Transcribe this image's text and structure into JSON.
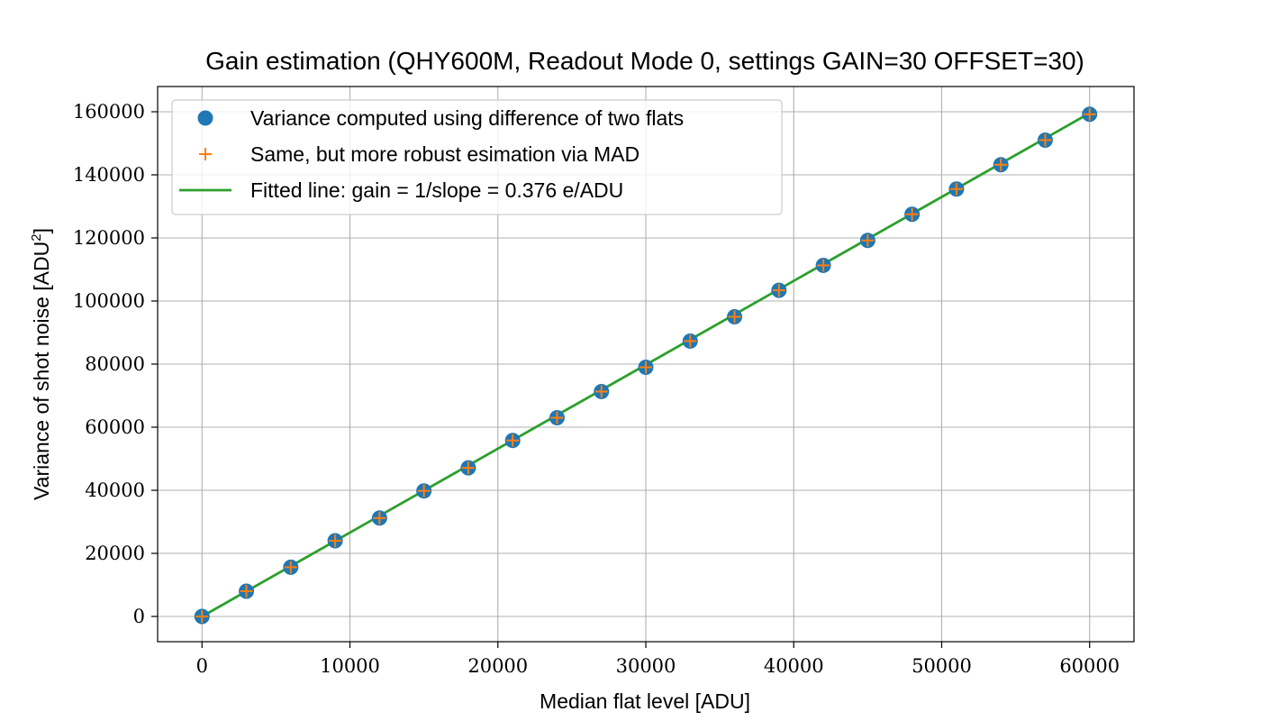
{
  "chart_data": {
    "type": "scatter",
    "title": "Gain estimation (QHY600M, Readout Mode 0, settings GAIN=30 OFFSET=30)",
    "xlabel": "Median flat level [ADU]",
    "ylabel_main": "Variance of shot noise [ADU",
    "ylabel_sup": "2",
    "ylabel_end": "]",
    "xlim": [
      -3000,
      63000
    ],
    "ylim": [
      -8000,
      168000
    ],
    "xticks": [
      0,
      10000,
      20000,
      30000,
      40000,
      50000,
      60000
    ],
    "yticks": [
      0,
      20000,
      40000,
      60000,
      80000,
      100000,
      120000,
      140000,
      160000
    ],
    "grid": true,
    "legend_position": "top-left",
    "colors": {
      "series1": "#1f77b4",
      "series2": "#ff7f0e",
      "fit": "#2ca02c",
      "grid": "#b0b0b0",
      "axes": "#000000"
    },
    "x": [
      0,
      3000,
      6000,
      9000,
      12000,
      15000,
      18000,
      21000,
      24000,
      27000,
      30000,
      33000,
      36000,
      39000,
      42000,
      45000,
      48000,
      51000,
      54000,
      57000,
      60000
    ],
    "series": [
      {
        "name": "Variance computed using difference of two flats",
        "marker": "circle",
        "values": [
          0,
          8000,
          15600,
          24000,
          31200,
          39800,
          47100,
          55800,
          63000,
          71300,
          79000,
          87300,
          95000,
          103400,
          111300,
          119200,
          127500,
          135500,
          143200,
          151000,
          159200
        ]
      },
      {
        "name": "Same, but more robust esimation via MAD",
        "marker": "plus",
        "values": [
          0,
          8000,
          15600,
          24000,
          31200,
          39800,
          47100,
          55800,
          63000,
          71300,
          79000,
          87300,
          95000,
          103400,
          111300,
          119200,
          127500,
          135500,
          143200,
          151000,
          159200
        ]
      },
      {
        "name": "Fitted line: gain = 1/slope = 0.376 e/ADU",
        "marker": "line",
        "x": [
          0,
          60000
        ],
        "values": [
          0,
          159574
        ]
      }
    ]
  }
}
